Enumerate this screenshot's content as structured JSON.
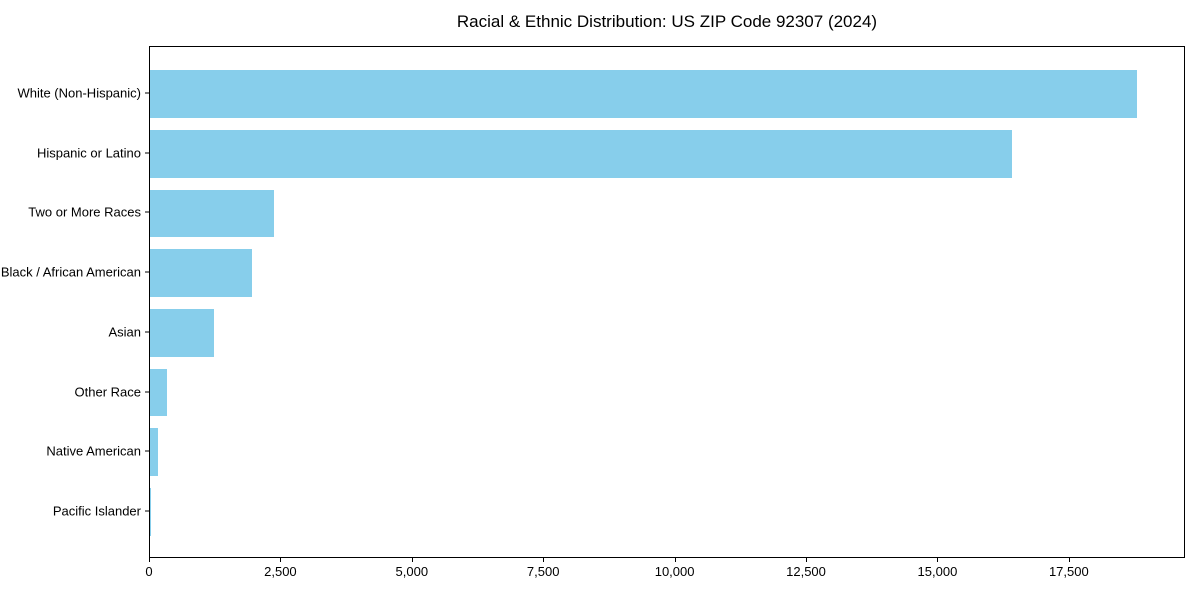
{
  "chart_data": {
    "type": "bar",
    "orientation": "horizontal",
    "title": "Racial & Ethnic Distribution: US ZIP Code 92307 (2024)",
    "categories": [
      "White (Non-Hispanic)",
      "Hispanic or Latino",
      "Two or More Races",
      "Black / African American",
      "Asian",
      "Other Race",
      "Native American",
      "Pacific Islander"
    ],
    "values": [
      18780,
      16400,
      2360,
      1950,
      1210,
      320,
      150,
      20
    ],
    "xlabel": "",
    "ylabel": "",
    "xlim": [
      0,
      19710
    ],
    "xticks": [
      0,
      2500,
      5000,
      7500,
      10000,
      12500,
      15000,
      17500
    ],
    "xtick_labels": [
      "0",
      "2,500",
      "5,000",
      "7,500",
      "10,000",
      "12,500",
      "15,000",
      "17,500"
    ],
    "bar_color": "#87CEEB",
    "background_color": "#ffffff",
    "axis_color": "#000000",
    "grid": false,
    "legend": null
  }
}
